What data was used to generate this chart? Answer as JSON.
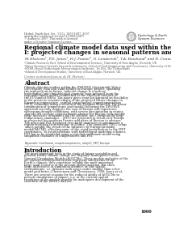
{
  "bg_color": "#ffffff",
  "header_journal": "Hydrol. Earth Syst. Sci., 11(5): 1000-1007, 2007",
  "header_line2": "www.hydrol-earth-syst-sci.net/11/1000/2007/",
  "header_line3": "© Author(s) 2007. This work is licensed",
  "header_line4": "under a Creative Commons License.",
  "logo_text1": "Hydrology & Earth",
  "logo_text2": "System Sciences",
  "title_line1": "Regional climate model data used within the SWURVE project",
  "title_line2": "I: projected changes in seasonal patterns and estimation of PET",
  "authors": "M. Ekstrom¹, P.D. Jones¹, H.J. Fowler², G. Lenderink³, T.A. Buishand³ and D. Conway⁴",
  "affil1": "¹Climate Research Unit, School of Environmental Sciences, University of East Anglia, Norwich, UK",
  "affil2": "²Water Resource Systems Research Laboratory, School of Civil Engineering and Geosciences, University of Newcastle upon Tyne, UK",
  "affil3": "³KNMI (Royal Netherlands Meteorological Institute), De Bilt, The Netherlands",
  "affil4": "⁴School of Development Studies, University of East Anglia, Norwich, UK",
  "contact": "Contact: m.ekstrom@uea.ac.uk (M. Ekstrom)",
  "abstract_title": "Abstract",
  "abstract_body": "Climate data for studies within the SWURVE (Sustainable Water: Uncertainty, Risk and Vulnerability in Europe) project, spanning the mid-present to future, indicate change is a serious hydrological and climatological anomaly even inferred from the regional climate model established at the Sheffield Institute of the EU-funded MESo. The paper gives some background on feasibility in the previous seasonal stages of the projected future changes in European temperature, rainfall and potential evapotranspiration (PET), estimated using a version of the Penman-Monteith. The linear combination of temperature and rainfall following the SWURVE approach recently suggests the east of Europe will experience worsening drought conditions, with severe precipitation in winter. A predicted average annual climate change for Europe with notable large increases in summer for the Atlantic, but Continentally large temperature anomalies... (PET) are projected to result over Europe as projected for southern France and parts of Iberian to advance. The projected PET displayed over large increases in summer for a region resulting from extreme in France. The anomalies (PET) range values notably the result of the influence by European-model model/RACMO, affecting some of the rapid perturbation in the IPET coordinates. To avoid problems with hydrological modeling schemes, PET has to be simulated using a regional catchment model using simplified estimates of temperatures and PET.",
  "keywords": "Keywords: Catchment, evapotranspiration, rainfall, PET, Europe",
  "intro_title": "Introduction",
  "intro_body": "The most important tools in the study of future variability and possible future climate change are Regional Atmosphere-Ocean General Circulation Models (AOGCMs). These models and state of the art statistical-interpolation bias represent subsystems of the Earth's climate; they constitute reliably the most important large-scale features of the present global situation, but show large differences at simulation distance or fine spatial environments, i.e. distance with space scales smaller than a few model grid boxes (Christensen and Christensen, 1999; Jones et al., 1995).",
  "intro_body2": "There are several reasons for the reduced ability of AOGCMs to provide simulations of impact, e.g. at the current spatial resolution of the models provide an inadequate development of the structure of the Earth's surface.",
  "page_number": "1000"
}
